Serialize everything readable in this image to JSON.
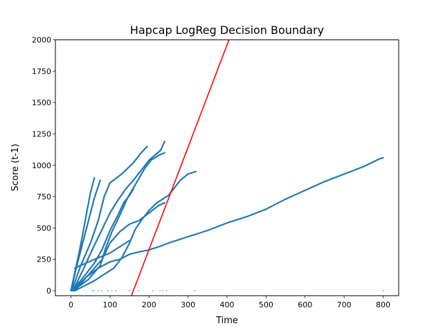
{
  "chart_data": {
    "type": "scatter",
    "title": "Hapcap LogReg Decision Boundary",
    "xlabel": "Time",
    "ylabel": "Score (t-1)",
    "xlim": [
      -40,
      840
    ],
    "ylim": [
      -40,
      2000
    ],
    "xticks": [
      0,
      100,
      200,
      300,
      400,
      500,
      600,
      700,
      800
    ],
    "yticks": [
      0,
      250,
      500,
      750,
      1000,
      1250,
      1500,
      1750,
      2000
    ],
    "grid": false,
    "colors": {
      "points": "#1f77b4",
      "boundary": "#ff0000"
    },
    "series": [
      {
        "values": [
          [
            0,
            0
          ],
          [
            10,
            150
          ],
          [
            20,
            290
          ],
          [
            30,
            450
          ],
          [
            40,
            620
          ],
          [
            50,
            780
          ],
          [
            60,
            900
          ]
        ]
      },
      {
        "values": [
          [
            0,
            0
          ],
          [
            15,
            200
          ],
          [
            30,
            380
          ],
          [
            45,
            560
          ],
          [
            60,
            740
          ],
          [
            75,
            880
          ]
        ]
      },
      {
        "values": [
          [
            2,
            0
          ],
          [
            25,
            200
          ],
          [
            50,
            380
          ],
          [
            70,
            560
          ],
          [
            85,
            750
          ],
          [
            100,
            860
          ],
          [
            130,
            930
          ],
          [
            160,
            1020
          ],
          [
            180,
            1100
          ],
          [
            195,
            1150
          ]
        ]
      },
      {
        "values": [
          [
            5,
            0
          ],
          [
            30,
            160
          ],
          [
            55,
            330
          ],
          [
            80,
            490
          ],
          [
            100,
            620
          ],
          [
            120,
            720
          ],
          [
            140,
            810
          ],
          [
            160,
            880
          ],
          [
            180,
            960
          ],
          [
            200,
            1040
          ],
          [
            230,
            1120
          ],
          [
            240,
            1190
          ]
        ]
      },
      {
        "values": [
          [
            3,
            0
          ],
          [
            30,
            100
          ],
          [
            60,
            220
          ],
          [
            80,
            330
          ],
          [
            100,
            480
          ],
          [
            120,
            600
          ],
          [
            135,
            700
          ],
          [
            150,
            760
          ],
          [
            160,
            810
          ]
        ]
      },
      {
        "values": [
          [
            5,
            0
          ],
          [
            40,
            110
          ],
          [
            80,
            250
          ],
          [
            100,
            380
          ],
          [
            125,
            470
          ],
          [
            150,
            530
          ],
          [
            175,
            560
          ],
          [
            200,
            620
          ],
          [
            225,
            680
          ],
          [
            240,
            700
          ]
        ]
      },
      {
        "values": [
          [
            5,
            0
          ],
          [
            45,
            90
          ],
          [
            75,
            200
          ],
          [
            90,
            350
          ],
          [
            105,
            470
          ],
          [
            125,
            600
          ],
          [
            145,
            740
          ],
          [
            160,
            820
          ],
          [
            175,
            900
          ],
          [
            190,
            980
          ],
          [
            205,
            1040
          ],
          [
            225,
            1080
          ],
          [
            240,
            1100
          ]
        ]
      },
      {
        "values": [
          [
            10,
            0
          ],
          [
            60,
            80
          ],
          [
            110,
            180
          ],
          [
            130,
            260
          ],
          [
            150,
            380
          ],
          [
            165,
            490
          ],
          [
            180,
            560
          ],
          [
            200,
            640
          ],
          [
            220,
            700
          ],
          [
            250,
            760
          ],
          [
            280,
            880
          ],
          [
            300,
            930
          ],
          [
            320,
            950
          ]
        ]
      },
      {
        "values": [
          [
            10,
            0
          ],
          [
            40,
            110
          ],
          [
            70,
            180
          ],
          [
            100,
            230
          ],
          [
            125,
            250
          ],
          [
            150,
            290
          ],
          [
            175,
            310
          ],
          [
            200,
            325
          ],
          [
            225,
            350
          ],
          [
            250,
            380
          ],
          [
            300,
            430
          ],
          [
            350,
            480
          ],
          [
            400,
            540
          ],
          [
            450,
            590
          ],
          [
            500,
            650
          ],
          [
            550,
            730
          ],
          [
            600,
            800
          ],
          [
            650,
            870
          ],
          [
            700,
            930
          ],
          [
            750,
            990
          ],
          [
            790,
            1050
          ],
          [
            800,
            1060
          ]
        ]
      },
      {
        "values": [
          [
            10,
            180
          ],
          [
            60,
            250
          ],
          [
            100,
            300
          ],
          [
            150,
            400
          ]
        ]
      }
    ],
    "stray_points": [
      [
        55,
        0
      ],
      [
        60,
        0
      ],
      [
        70,
        0
      ],
      [
        78,
        0
      ],
      [
        95,
        0
      ],
      [
        105,
        0
      ],
      [
        115,
        0
      ],
      [
        150,
        0
      ],
      [
        172,
        0
      ],
      [
        210,
        0
      ],
      [
        228,
        0
      ],
      [
        235,
        0
      ],
      [
        245,
        0
      ],
      [
        318,
        0
      ],
      [
        800,
        0
      ]
    ],
    "boundary_line": [
      [
        155,
        -40
      ],
      [
        405,
        2000
      ]
    ]
  }
}
